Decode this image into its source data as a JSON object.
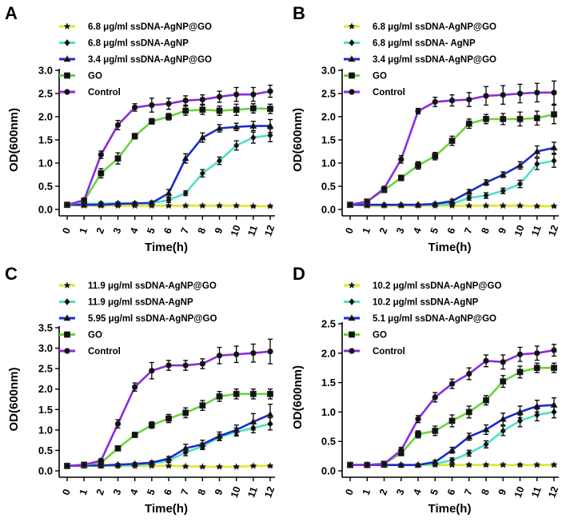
{
  "colors": {
    "yellow": "#e0e62a",
    "cyan": "#4ee0c8",
    "blue": "#1c2ad0",
    "green": "#6ad43a",
    "purple": "#8a2be2",
    "axis": "#000000"
  },
  "chart_data": [
    {
      "type": "line",
      "panel_label": "A",
      "xlabel": "Time(h)",
      "ylabel": "OD(600nm)",
      "ylim": [
        0,
        3.0
      ],
      "yticks": [
        "0.0",
        "0.5",
        "1.0",
        "1.5",
        "2.0",
        "2.5",
        "3.0"
      ],
      "categories": [
        "0",
        "1",
        "2",
        "3",
        "4",
        "5",
        "6",
        "7",
        "8",
        "9",
        "10",
        "11",
        "12"
      ],
      "series": [
        {
          "name": "6.8 μg/ml ssDNA-AgNP@GO",
          "color": "yellow",
          "marker": "star",
          "values": [
            0.1,
            0.08,
            0.08,
            0.08,
            0.08,
            0.08,
            0.08,
            0.08,
            0.08,
            0.08,
            0.08,
            0.07,
            0.07
          ],
          "err": [
            0.02,
            0.02,
            0.02,
            0.02,
            0.02,
            0.02,
            0.02,
            0.02,
            0.02,
            0.02,
            0.02,
            0.02,
            0.02
          ]
        },
        {
          "name": "6.8 μg/ml ssDNA-AgNP",
          "color": "cyan",
          "marker": "diamond",
          "values": [
            0.1,
            0.12,
            0.13,
            0.13,
            0.13,
            0.14,
            0.2,
            0.35,
            0.78,
            1.05,
            1.38,
            1.55,
            1.6
          ],
          "err": [
            0.03,
            0.03,
            0.03,
            0.03,
            0.03,
            0.03,
            0.05,
            0.05,
            0.08,
            0.08,
            0.1,
            0.12,
            0.14
          ]
        },
        {
          "name": "3.4 μg/ml ssDNA-AgNP@GO",
          "color": "blue",
          "marker": "triangle",
          "values": [
            0.1,
            0.1,
            0.1,
            0.12,
            0.13,
            0.14,
            0.35,
            1.1,
            1.55,
            1.75,
            1.78,
            1.8,
            1.8
          ],
          "err": [
            0.03,
            0.03,
            0.03,
            0.03,
            0.03,
            0.04,
            0.08,
            0.1,
            0.1,
            0.08,
            0.08,
            0.1,
            0.14
          ]
        },
        {
          "name": "GO",
          "color": "green",
          "marker": "square",
          "values": [
            0.1,
            0.18,
            0.78,
            1.1,
            1.58,
            1.9,
            2.0,
            2.13,
            2.15,
            2.13,
            2.15,
            2.18,
            2.17
          ],
          "err": [
            0.03,
            0.05,
            0.1,
            0.12,
            0.06,
            0.06,
            0.07,
            0.1,
            0.1,
            0.1,
            0.12,
            0.1,
            0.1
          ]
        },
        {
          "name": "Control",
          "color": "purple",
          "marker": "circle",
          "values": [
            0.1,
            0.2,
            1.18,
            1.82,
            2.2,
            2.25,
            2.28,
            2.35,
            2.37,
            2.43,
            2.48,
            2.48,
            2.55
          ],
          "err": [
            0.03,
            0.05,
            0.08,
            0.1,
            0.08,
            0.15,
            0.12,
            0.1,
            0.1,
            0.12,
            0.15,
            0.15,
            0.13
          ]
        }
      ]
    },
    {
      "type": "line",
      "panel_label": "B",
      "xlabel": "Time(h)",
      "ylabel": "OD(600nm)",
      "ylim": [
        0,
        3.0
      ],
      "yticks": [
        "0.0",
        "0.5",
        "1.0",
        "1.5",
        "2.0",
        "2.5",
        "3.0"
      ],
      "categories": [
        "0",
        "1",
        "2",
        "3",
        "4",
        "5",
        "6",
        "7",
        "8",
        "9",
        "10",
        "11",
        "12"
      ],
      "series": [
        {
          "name": "6.8 μg/ml ssDNA-AgNP@GO",
          "color": "yellow",
          "marker": "star",
          "values": [
            0.1,
            0.08,
            0.08,
            0.08,
            0.08,
            0.08,
            0.08,
            0.08,
            0.08,
            0.08,
            0.08,
            0.07,
            0.07
          ],
          "err": [
            0.02,
            0.02,
            0.02,
            0.02,
            0.02,
            0.02,
            0.02,
            0.02,
            0.02,
            0.02,
            0.02,
            0.02,
            0.02
          ]
        },
        {
          "name": "6.8 μg/ml ssDNA- AgNP",
          "color": "cyan",
          "marker": "diamond",
          "values": [
            0.1,
            0.1,
            0.1,
            0.1,
            0.1,
            0.1,
            0.12,
            0.25,
            0.3,
            0.4,
            0.55,
            0.98,
            1.05
          ],
          "err": [
            0.02,
            0.02,
            0.02,
            0.02,
            0.02,
            0.02,
            0.03,
            0.05,
            0.06,
            0.06,
            0.08,
            0.12,
            0.14
          ]
        },
        {
          "name": "3.4 μg/ml ssDNA-AgNP@GO",
          "color": "blue",
          "marker": "triangle",
          "values": [
            0.1,
            0.1,
            0.1,
            0.1,
            0.1,
            0.12,
            0.18,
            0.38,
            0.58,
            0.75,
            0.95,
            1.25,
            1.33
          ],
          "err": [
            0.02,
            0.02,
            0.02,
            0.02,
            0.02,
            0.03,
            0.04,
            0.05,
            0.06,
            0.06,
            0.08,
            0.12,
            0.12
          ]
        },
        {
          "name": "GO",
          "color": "green",
          "marker": "square",
          "values": [
            0.1,
            0.17,
            0.42,
            0.68,
            0.95,
            1.15,
            1.48,
            1.85,
            1.95,
            1.95,
            1.95,
            1.97,
            2.05
          ],
          "err": [
            0.03,
            0.04,
            0.05,
            0.06,
            0.08,
            0.08,
            0.1,
            0.1,
            0.1,
            0.12,
            0.15,
            0.15,
            0.2
          ]
        },
        {
          "name": "Control",
          "color": "purple",
          "marker": "circle",
          "values": [
            0.1,
            0.17,
            0.45,
            1.08,
            2.12,
            2.32,
            2.35,
            2.37,
            2.45,
            2.47,
            2.5,
            2.52,
            2.52
          ],
          "err": [
            0.03,
            0.04,
            0.05,
            0.08,
            0.06,
            0.1,
            0.12,
            0.15,
            0.2,
            0.2,
            0.2,
            0.2,
            0.25
          ]
        }
      ]
    },
    {
      "type": "line",
      "panel_label": "C",
      "xlabel": "Time(h)",
      "ylabel": "OD(600nm)",
      "ylim": [
        0,
        3.5
      ],
      "yticks": [
        "0.0",
        "0.5",
        "1.0",
        "1.5",
        "2.0",
        "2.5",
        "3.0",
        "3.5"
      ],
      "categories": [
        "0",
        "1",
        "2",
        "3",
        "4",
        "5",
        "6",
        "7",
        "8",
        "9",
        "10",
        "11",
        "12"
      ],
      "series": [
        {
          "name": "11.9 μg/ml ssDNA-AgNP@GO",
          "color": "yellow",
          "marker": "star",
          "values": [
            0.12,
            0.12,
            0.12,
            0.12,
            0.12,
            0.12,
            0.12,
            0.11,
            0.1,
            0.1,
            0.1,
            0.12,
            0.12
          ],
          "err": [
            0.02,
            0.02,
            0.02,
            0.02,
            0.02,
            0.02,
            0.02,
            0.02,
            0.02,
            0.02,
            0.02,
            0.02,
            0.02
          ]
        },
        {
          "name": "11.9 μg/ml ssDNA-AgNP",
          "color": "cyan",
          "marker": "diamond",
          "values": [
            0.12,
            0.13,
            0.13,
            0.13,
            0.14,
            0.18,
            0.25,
            0.45,
            0.6,
            0.82,
            0.95,
            1.05,
            1.15
          ],
          "err": [
            0.02,
            0.02,
            0.02,
            0.02,
            0.03,
            0.04,
            0.05,
            0.08,
            0.08,
            0.08,
            0.1,
            0.12,
            0.15
          ]
        },
        {
          "name": "5.95 μg/ml ssDNA-AgNP@GO",
          "color": "blue",
          "marker": "triangle",
          "values": [
            0.12,
            0.13,
            0.13,
            0.15,
            0.17,
            0.2,
            0.3,
            0.55,
            0.65,
            0.85,
            1.0,
            1.2,
            1.38
          ],
          "err": [
            0.02,
            0.02,
            0.03,
            0.03,
            0.03,
            0.04,
            0.05,
            0.1,
            0.1,
            0.1,
            0.12,
            0.2,
            0.25
          ]
        },
        {
          "name": "GO",
          "color": "green",
          "marker": "square",
          "values": [
            0.12,
            0.15,
            0.2,
            0.55,
            0.88,
            1.12,
            1.28,
            1.42,
            1.6,
            1.82,
            1.88,
            1.88,
            1.88
          ],
          "err": [
            0.02,
            0.03,
            0.04,
            0.05,
            0.06,
            0.08,
            0.1,
            0.12,
            0.12,
            0.12,
            0.12,
            0.12,
            0.12
          ]
        },
        {
          "name": "Control",
          "color": "purple",
          "marker": "circle",
          "values": [
            0.12,
            0.15,
            0.25,
            1.15,
            2.05,
            2.45,
            2.58,
            2.58,
            2.62,
            2.82,
            2.85,
            2.88,
            2.92
          ],
          "err": [
            0.02,
            0.03,
            0.05,
            0.1,
            0.1,
            0.2,
            0.12,
            0.12,
            0.12,
            0.2,
            0.2,
            0.22,
            0.3
          ]
        }
      ]
    },
    {
      "type": "line",
      "panel_label": "D",
      "xlabel": "Time(h)",
      "ylabel": "OD(600nm)",
      "ylim": [
        0,
        2.5
      ],
      "yticks": [
        "0.0",
        "0.5",
        "1.0",
        "1.5",
        "2.0",
        "2.5"
      ],
      "categories": [
        "0",
        "1",
        "2",
        "3",
        "4",
        "5",
        "6",
        "7",
        "8",
        "9",
        "10",
        "11",
        "12"
      ],
      "series": [
        {
          "name": "10.2 μg/ml ssDNA-AgNP@GO",
          "color": "yellow",
          "marker": "star",
          "values": [
            0.1,
            0.1,
            0.1,
            0.1,
            0.1,
            0.1,
            0.1,
            0.1,
            0.1,
            0.1,
            0.1,
            0.1,
            0.1
          ],
          "err": [
            0.02,
            0.02,
            0.02,
            0.02,
            0.02,
            0.02,
            0.02,
            0.02,
            0.02,
            0.02,
            0.02,
            0.02,
            0.02
          ]
        },
        {
          "name": "10.2 μg/ml ssDNA-AgNP",
          "color": "cyan",
          "marker": "diamond",
          "values": [
            0.1,
            0.1,
            0.1,
            0.1,
            0.1,
            0.12,
            0.18,
            0.3,
            0.45,
            0.68,
            0.85,
            0.95,
            1.0
          ],
          "err": [
            0.02,
            0.02,
            0.02,
            0.02,
            0.02,
            0.03,
            0.04,
            0.05,
            0.06,
            0.08,
            0.1,
            0.1,
            0.1
          ]
        },
        {
          "name": "5.1 μg/ml ssDNA-AgNP@GO",
          "color": "blue",
          "marker": "triangle",
          "values": [
            0.1,
            0.1,
            0.1,
            0.1,
            0.1,
            0.15,
            0.35,
            0.58,
            0.7,
            0.88,
            1.0,
            1.1,
            1.12
          ],
          "err": [
            0.02,
            0.02,
            0.02,
            0.02,
            0.02,
            0.03,
            0.05,
            0.06,
            0.08,
            0.1,
            0.1,
            0.1,
            0.12
          ]
        },
        {
          "name": "GO",
          "color": "green",
          "marker": "square",
          "values": [
            0.1,
            0.1,
            0.12,
            0.3,
            0.62,
            0.68,
            0.85,
            1.0,
            1.2,
            1.52,
            1.68,
            1.75,
            1.75
          ],
          "err": [
            0.02,
            0.02,
            0.03,
            0.04,
            0.06,
            0.08,
            0.1,
            0.1,
            0.08,
            0.1,
            0.1,
            0.08,
            0.08
          ]
        },
        {
          "name": "Control",
          "color": "purple",
          "marker": "circle",
          "values": [
            0.1,
            0.1,
            0.12,
            0.35,
            0.88,
            1.25,
            1.48,
            1.65,
            1.87,
            1.85,
            1.98,
            2.0,
            2.05
          ],
          "err": [
            0.02,
            0.02,
            0.03,
            0.05,
            0.06,
            0.08,
            0.08,
            0.1,
            0.1,
            0.12,
            0.12,
            0.12,
            0.1
          ]
        }
      ]
    }
  ]
}
